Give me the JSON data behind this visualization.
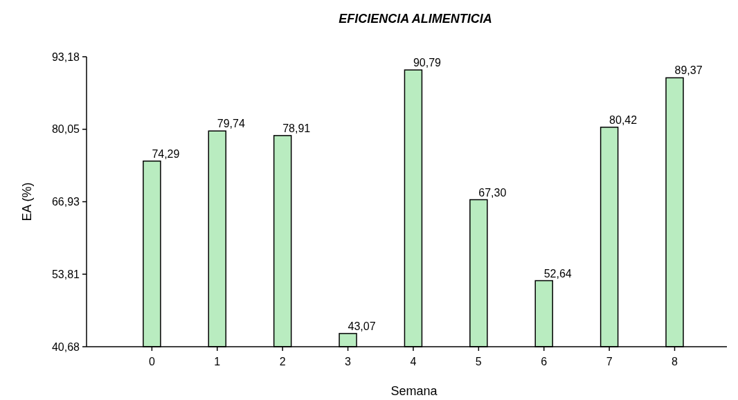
{
  "chart_data": {
    "type": "bar",
    "title": "EFICIENCIA ALIMENTICIA",
    "xlabel": "Semana",
    "ylabel": "EA (%)",
    "categories": [
      "0",
      "1",
      "2",
      "3",
      "4",
      "5",
      "6",
      "7",
      "8"
    ],
    "values": [
      74.29,
      79.74,
      78.91,
      43.07,
      90.79,
      67.3,
      52.64,
      80.42,
      89.37
    ],
    "value_labels": [
      "74,29",
      "79,74",
      "78,91",
      "43,07",
      "90,79",
      "67,30",
      "52,64",
      "80,42",
      "89,37"
    ],
    "color": "#b9ecc0",
    "ylim": [
      40.68,
      93.18
    ],
    "yticks": [
      {
        "value": 40.68,
        "label": "40,68"
      },
      {
        "value": 53.81,
        "label": "53,81"
      },
      {
        "value": 66.93,
        "label": "66,93"
      },
      {
        "value": 80.05,
        "label": "80,05"
      },
      {
        "value": 93.18,
        "label": "93,18"
      }
    ],
    "grid": false
  }
}
